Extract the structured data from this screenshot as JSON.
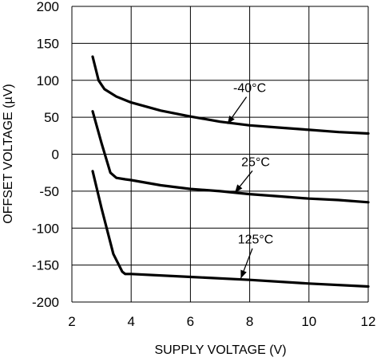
{
  "chart_data": {
    "type": "line",
    "title": "",
    "xlabel": "SUPPLY VOLTAGE (V)",
    "ylabel": "OFFSET VOLTAGE (µV)",
    "xlim": [
      2,
      12
    ],
    "ylim": [
      -200,
      200
    ],
    "grid": true,
    "x_ticks": [
      "2",
      "4",
      "6",
      "8",
      "10",
      "12"
    ],
    "y_ticks": [
      "200",
      "150",
      "100",
      "50",
      "0",
      "-50",
      "-100",
      "-150",
      "-200"
    ],
    "series": [
      {
        "name": "-40°C",
        "x": [
          2.7,
          2.9,
          3.1,
          3.5,
          4,
          5,
          6,
          7,
          8,
          9,
          10,
          11,
          12
        ],
        "y": [
          132,
          100,
          88,
          78,
          70,
          59,
          51,
          44,
          39,
          36,
          33,
          30,
          28
        ]
      },
      {
        "name": "25°C",
        "x": [
          2.7,
          3.0,
          3.3,
          3.5,
          3.8,
          4,
          5,
          6,
          7,
          8,
          9,
          10,
          11,
          12
        ],
        "y": [
          58,
          15,
          -25,
          -32,
          -34,
          -35,
          -42,
          -47,
          -50,
          -54,
          -57,
          -60,
          -62,
          -65
        ]
      },
      {
        "name": "125°C",
        "x": [
          2.7,
          3.0,
          3.4,
          3.7,
          3.8,
          4,
          6,
          8,
          10,
          12
        ],
        "y": [
          -23,
          -73,
          -135,
          -159,
          -162,
          -162,
          -166,
          -170,
          -175,
          -179
        ]
      }
    ],
    "annotations": [
      {
        "text": "-40°C",
        "series": "-40°C",
        "text_x": 8.0,
        "text_y": 84,
        "arrow_to_x": 7.25,
        "arrow_to_y": 41
      },
      {
        "text": "25°C",
        "series": "25°C",
        "text_x": 8.2,
        "text_y": -16,
        "arrow_to_x": 7.5,
        "arrow_to_y": -52
      },
      {
        "text": "125°C",
        "series": "125°C",
        "text_x": 8.2,
        "text_y": -121,
        "arrow_to_x": 7.7,
        "arrow_to_y": -168
      }
    ]
  }
}
